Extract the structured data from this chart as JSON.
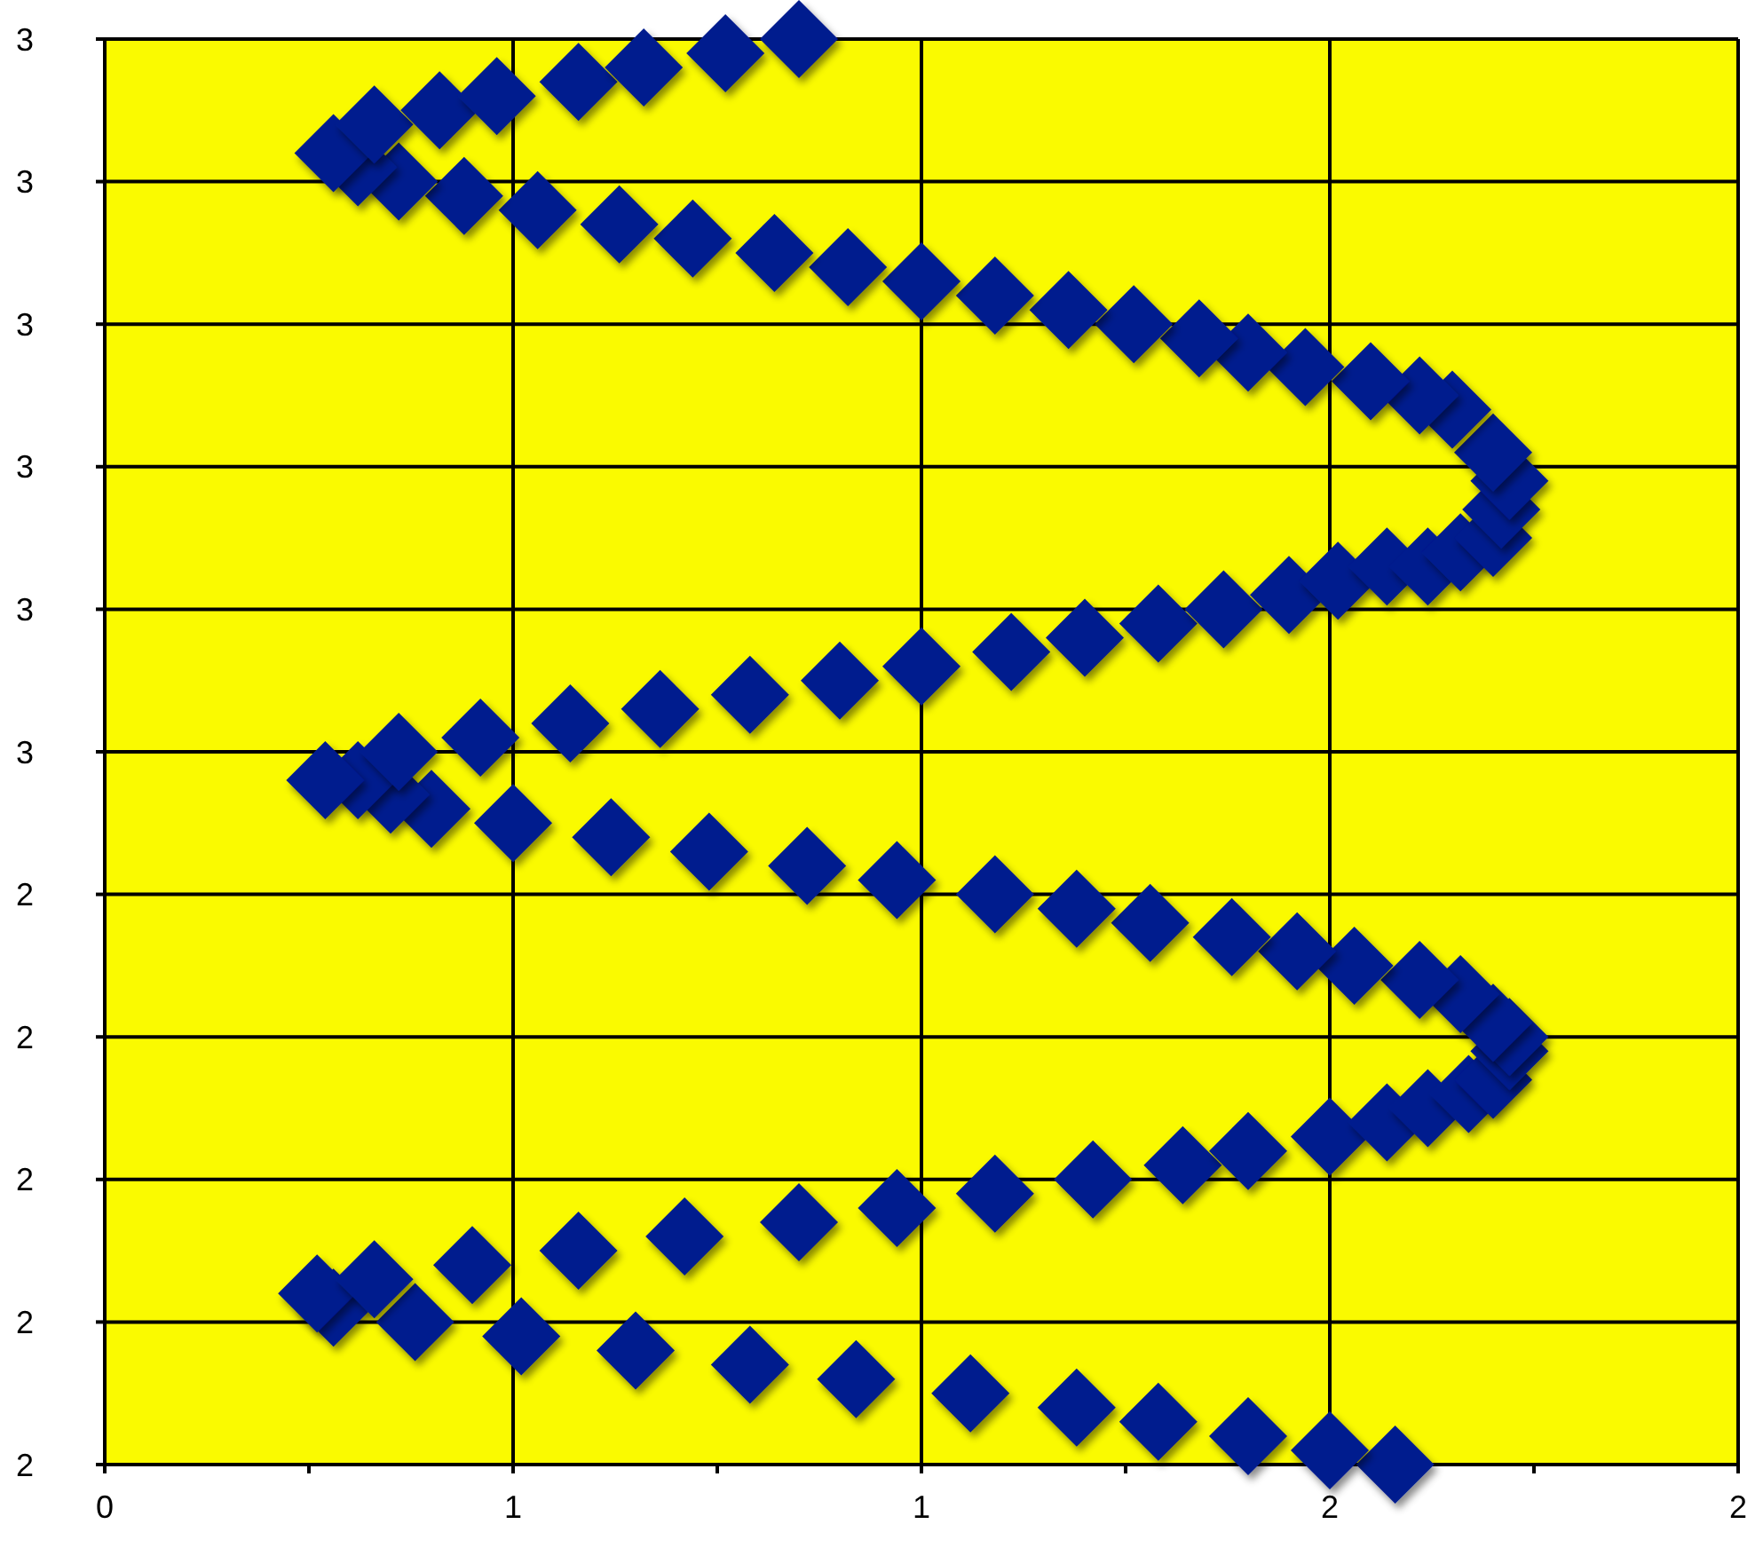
{
  "chart_data": {
    "type": "scatter",
    "marker": "diamond",
    "grid": true,
    "xlim": [
      0,
      2
    ],
    "ylim": [
      2,
      3
    ],
    "xticks": [
      {
        "value": 0,
        "label": "0"
      },
      {
        "value": 0.25,
        "label": null
      },
      {
        "value": 0.5,
        "label": "1"
      },
      {
        "value": 0.75,
        "label": null
      },
      {
        "value": 1,
        "label": "1"
      },
      {
        "value": 1.25,
        "label": null
      },
      {
        "value": 1.5,
        "label": "2"
      },
      {
        "value": 1.75,
        "label": null
      },
      {
        "value": 2,
        "label": "2"
      }
    ],
    "yticks": [
      {
        "value": 2,
        "label": "2"
      },
      {
        "value": 2.1,
        "label": "2"
      },
      {
        "value": 2.2,
        "label": "2"
      },
      {
        "value": 2.3,
        "label": "2"
      },
      {
        "value": 2.4,
        "label": "2"
      },
      {
        "value": 2.5,
        "label": "3"
      },
      {
        "value": 2.6,
        "label": "3"
      },
      {
        "value": 2.7,
        "label": "3"
      },
      {
        "value": 2.8,
        "label": "3"
      },
      {
        "value": 2.9,
        "label": "3"
      },
      {
        "value": 3,
        "label": "3"
      }
    ],
    "series": [
      {
        "color": "#061b8e",
        "x": [
          1.58,
          1.5,
          1.4,
          1.29,
          1.19,
          1.06,
          0.92,
          0.79,
          0.65,
          0.51,
          0.38,
          0.28,
          0.26,
          0.33,
          0.45,
          0.58,
          0.71,
          0.85,
          0.97,
          1.09,
          1.21,
          1.32,
          1.4,
          1.5,
          1.57,
          1.62,
          1.67,
          1.7,
          1.72,
          1.72,
          1.7,
          1.66,
          1.61,
          1.53,
          1.46,
          1.38,
          1.28,
          1.19,
          1.09,
          0.97,
          0.86,
          0.74,
          0.62,
          0.5,
          0.4,
          0.35,
          0.31,
          0.27,
          0.36,
          0.46,
          0.57,
          0.68,
          0.79,
          0.9,
          1.0,
          1.11,
          1.2,
          1.29,
          1.37,
          1.45,
          1.51,
          1.57,
          1.62,
          1.66,
          1.7,
          1.71,
          1.72,
          1.7,
          1.65,
          1.61,
          1.55,
          1.47,
          1.4,
          1.34,
          1.26,
          1.18,
          1.09,
          1.0,
          0.91,
          0.82,
          0.72,
          0.63,
          0.53,
          0.44,
          0.36,
          0.31,
          0.28,
          0.33,
          0.41,
          0.48,
          0.58,
          0.66,
          0.76,
          0.85
        ],
        "values": [
          2.0,
          2.01,
          2.02,
          2.03,
          2.04,
          2.05,
          2.06,
          2.07,
          2.08,
          2.09,
          2.1,
          2.11,
          2.12,
          2.13,
          2.14,
          2.15,
          2.16,
          2.17,
          2.18,
          2.19,
          2.2,
          2.21,
          2.22,
          2.23,
          2.24,
          2.25,
          2.26,
          2.27,
          2.29,
          2.3,
          2.31,
          2.33,
          2.34,
          2.35,
          2.36,
          2.37,
          2.38,
          2.39,
          2.4,
          2.41,
          2.42,
          2.43,
          2.44,
          2.45,
          2.46,
          2.47,
          2.48,
          2.48,
          2.5,
          2.51,
          2.52,
          2.53,
          2.54,
          2.55,
          2.56,
          2.57,
          2.58,
          2.59,
          2.6,
          2.61,
          2.62,
          2.63,
          2.63,
          2.64,
          2.65,
          2.67,
          2.69,
          2.71,
          2.74,
          2.75,
          2.76,
          2.77,
          2.78,
          2.79,
          2.8,
          2.81,
          2.82,
          2.83,
          2.84,
          2.85,
          2.86,
          2.87,
          2.88,
          2.89,
          2.9,
          2.91,
          2.92,
          2.94,
          2.95,
          2.96,
          2.97,
          2.98,
          2.99,
          3.0
        ]
      }
    ]
  }
}
